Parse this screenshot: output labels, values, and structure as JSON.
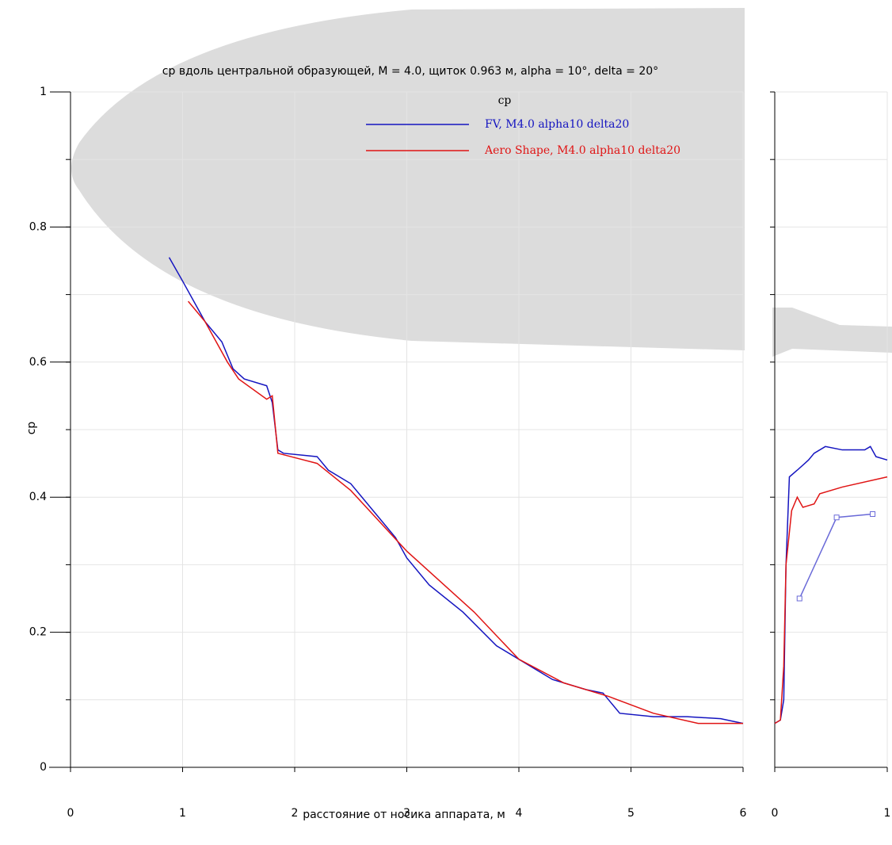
{
  "chart_data": [
    {
      "type": "line",
      "title": "cp вдоль центральной образующей, M = 4.0, щиток 0.963 м, alpha = 10°, delta = 20°",
      "x_label": "расстояние от носика аппарата, м",
      "y_label": "cp",
      "legend_title": "cp",
      "xlim": [
        0,
        6
      ],
      "ylim": [
        0,
        1
      ],
      "xticks": [
        0,
        1,
        2,
        3,
        4,
        5,
        6
      ],
      "yticks": [
        0,
        0.2,
        0.4,
        0.6,
        0.8,
        1
      ],
      "ygrid": [
        0.1,
        0.2,
        0.3,
        0.4,
        0.5,
        0.6,
        0.7,
        0.8,
        0.9,
        1
      ],
      "grid": true,
      "series": [
        {
          "name": "FV, M4.0 alpha10 delta20",
          "color": "#1414c0",
          "x": [
            0.88,
            1.0,
            1.2,
            1.35,
            1.45,
            1.55,
            1.75,
            1.8,
            1.85,
            1.9,
            2.2,
            2.3,
            2.5,
            2.7,
            2.9,
            3.0,
            3.2,
            3.5,
            3.8,
            4.0,
            4.3,
            4.6,
            4.75,
            4.8,
            4.9,
            5.2,
            5.5,
            5.8,
            6.0
          ],
          "values": [
            0.755,
            0.72,
            0.66,
            0.63,
            0.59,
            0.575,
            0.565,
            0.54,
            0.47,
            0.465,
            0.46,
            0.44,
            0.42,
            0.38,
            0.34,
            0.31,
            0.27,
            0.23,
            0.18,
            0.16,
            0.13,
            0.115,
            0.11,
            0.1,
            0.08,
            0.075,
            0.075,
            0.072,
            0.065
          ]
        },
        {
          "name": "Aero Shape, M4.0 alpha10 delta20",
          "color": "#e01414",
          "x": [
            1.05,
            1.2,
            1.4,
            1.5,
            1.75,
            1.8,
            1.85,
            2.2,
            2.5,
            3.0,
            3.6,
            4.0,
            4.4,
            4.8,
            5.2,
            5.6,
            6.0
          ],
          "values": [
            0.69,
            0.66,
            0.6,
            0.575,
            0.545,
            0.55,
            0.465,
            0.45,
            0.41,
            0.32,
            0.23,
            0.16,
            0.125,
            0.105,
            0.08,
            0.065,
            0.065
          ]
        }
      ]
    },
    {
      "type": "line",
      "xlim": [
        0,
        1
      ],
      "ylim": [
        0,
        1
      ],
      "xticks": [
        0,
        1
      ],
      "ygrid": [
        0.1,
        0.2,
        0.3,
        0.4,
        0.5,
        0.6,
        0.7,
        0.8,
        0.9,
        1
      ],
      "grid": true,
      "series": [
        {
          "color": "#1414c0",
          "x": [
            0,
            0.05,
            0.08,
            0.1,
            0.13,
            0.2,
            0.3,
            0.35,
            0.45,
            0.6,
            0.8,
            0.85,
            0.9,
            1.0
          ],
          "values": [
            0.065,
            0.07,
            0.1,
            0.3,
            0.43,
            0.44,
            0.455,
            0.465,
            0.475,
            0.47,
            0.47,
            0.475,
            0.46,
            0.455
          ]
        },
        {
          "color": "#e01414",
          "x": [
            0,
            0.05,
            0.08,
            0.1,
            0.15,
            0.2,
            0.25,
            0.35,
            0.4,
            0.6,
            1.0
          ],
          "values": [
            0.065,
            0.07,
            0.15,
            0.3,
            0.38,
            0.4,
            0.385,
            0.39,
            0.405,
            0.415,
            0.43
          ]
        },
        {
          "color": "#6a6ad8",
          "markers": true,
          "x": [
            0.22,
            0.55,
            0.87
          ],
          "values": [
            0.25,
            0.37,
            0.375
          ]
        }
      ]
    }
  ]
}
